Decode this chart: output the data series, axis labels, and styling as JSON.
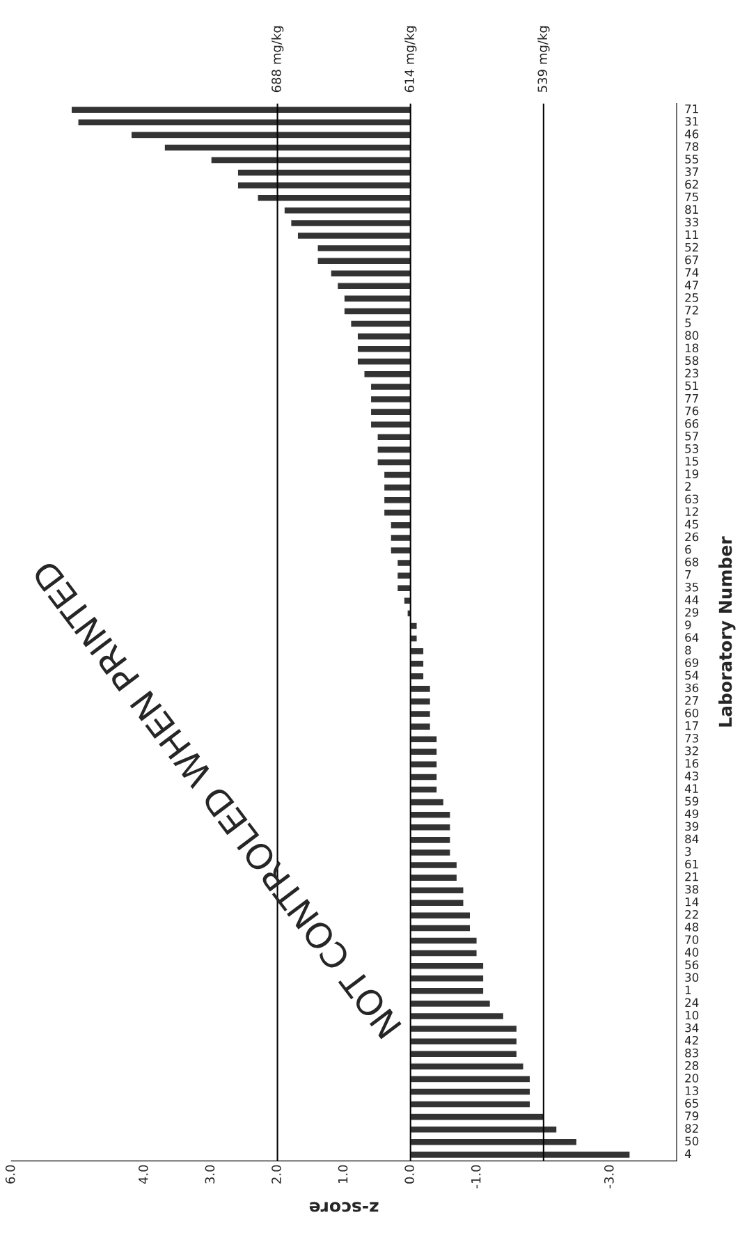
{
  "chart_data": {
    "type": "bar",
    "orientation": "horizontal",
    "xlabel": "z-score",
    "ylabel": "Laboratory Number",
    "categories": [
      "71",
      "31",
      "46",
      "78",
      "55",
      "37",
      "62",
      "75",
      "81",
      "33",
      "11",
      "52",
      "67",
      "74",
      "47",
      "25",
      "72",
      "5",
      "80",
      "18",
      "58",
      "23",
      "51",
      "77",
      "76",
      "66",
      "57",
      "53",
      "15",
      "19",
      "2",
      "63",
      "12",
      "45",
      "26",
      "6",
      "68",
      "7",
      "35",
      "44",
      "29",
      "9",
      "64",
      "8",
      "69",
      "54",
      "36",
      "27",
      "60",
      "17",
      "73",
      "32",
      "16",
      "43",
      "41",
      "59",
      "49",
      "39",
      "84",
      "3",
      "61",
      "21",
      "38",
      "14",
      "22",
      "48",
      "70",
      "40",
      "56",
      "30",
      "1",
      "24",
      "10",
      "34",
      "42",
      "83",
      "28",
      "20",
      "13",
      "65",
      "79",
      "82",
      "50",
      "4"
    ],
    "values": [
      5.1,
      5.0,
      4.2,
      3.7,
      3.0,
      2.6,
      2.6,
      2.3,
      1.9,
      1.8,
      1.7,
      1.4,
      1.4,
      1.2,
      1.1,
      1.0,
      1.0,
      0.9,
      0.8,
      0.8,
      0.8,
      0.7,
      0.6,
      0.6,
      0.6,
      0.6,
      0.5,
      0.5,
      0.5,
      0.4,
      0.4,
      0.4,
      0.4,
      0.3,
      0.3,
      0.3,
      0.2,
      0.2,
      0.2,
      0.1,
      0.05,
      -0.1,
      -0.1,
      -0.2,
      -0.2,
      -0.2,
      -0.3,
      -0.3,
      -0.3,
      -0.3,
      -0.4,
      -0.4,
      -0.4,
      -0.4,
      -0.4,
      -0.5,
      -0.6,
      -0.6,
      -0.6,
      -0.6,
      -0.7,
      -0.7,
      -0.8,
      -0.8,
      -0.9,
      -0.9,
      -1.0,
      -1.0,
      -1.1,
      -1.1,
      -1.1,
      -1.2,
      -1.4,
      -1.6,
      -1.6,
      -1.6,
      -1.7,
      -1.8,
      -1.8,
      -1.8,
      -2.0,
      -2.2,
      -2.5,
      -3.3
    ],
    "color": "#333333",
    "xlim": [
      6,
      -4
    ],
    "xticks": [
      {
        "value": 6,
        "label": "6.0"
      },
      {
        "value": 4,
        "label": "4.0"
      },
      {
        "value": 3,
        "label": "3.0"
      },
      {
        "value": 2,
        "label": "2.0"
      },
      {
        "value": 1,
        "label": "1.0"
      },
      {
        "value": 0,
        "label": "0.0"
      },
      {
        "value": -1,
        "label": "-1.0"
      },
      {
        "value": -3,
        "label": "-3.0"
      }
    ],
    "ref_lines": [
      {
        "axis": "x",
        "value": 2,
        "label": "688 mg/kg",
        "color": "#000000"
      },
      {
        "axis": "x",
        "value": 0,
        "label": "614 mg/kg",
        "color": "#000000"
      },
      {
        "axis": "x",
        "value": -2,
        "label": "539 mg/kg",
        "color": "#000000"
      }
    ],
    "annotations": [
      "NOT CONTROLED WHEN PRINTED"
    ],
    "grid": false
  }
}
